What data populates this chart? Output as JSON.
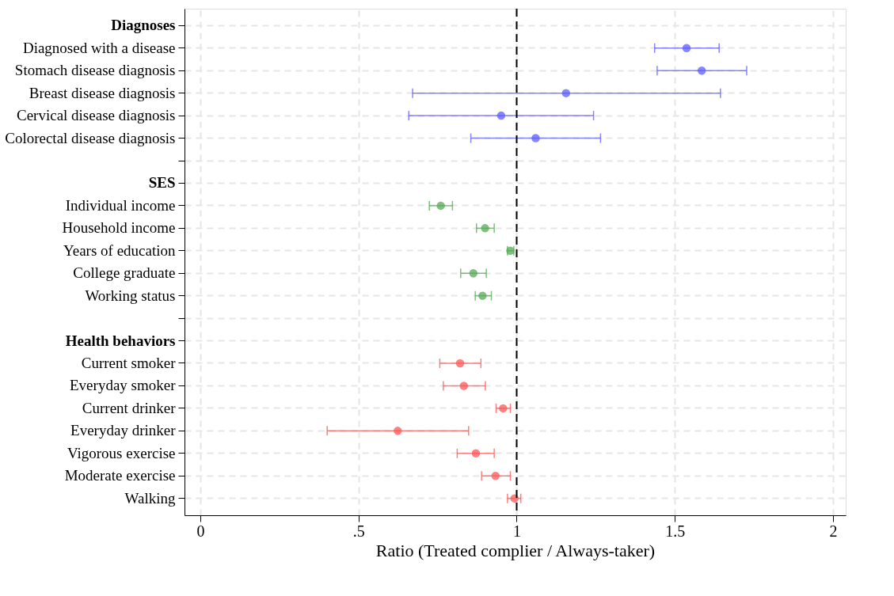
{
  "chart_data": {
    "type": "scatter",
    "orientation": "horizontal",
    "xlabel": "Ratio (Treated complier / Always-taker)",
    "categories": [
      "Diagnoses",
      "Diagnosed with a disease",
      "Stomach disease diagnosis",
      "Breast disease diagnosis",
      "Cervical disease diagnosis",
      "Colorectal disease diagnosis",
      null,
      "SES",
      "Individual income",
      "Household income",
      "Years of education",
      "College graduate",
      "Working status",
      null,
      "Health behaviors",
      "Current smoker",
      "Everyday smoker",
      "Current drinker",
      "Everyday drinker",
      "Vigorous exercise",
      "Moderate exercise",
      "Walking"
    ],
    "series": [
      {
        "color": "#5c5cff",
        "values": [
          null,
          1.537,
          1.585,
          1.156,
          0.951,
          1.06,
          null,
          null,
          null,
          null,
          null,
          null,
          null,
          null,
          null,
          null,
          null,
          null,
          null,
          null,
          null,
          null
        ],
        "errors": [
          null,
          [
            1.436,
            1.64
          ],
          [
            1.444,
            1.727
          ],
          [
            0.671,
            1.644
          ],
          [
            0.659,
            1.243
          ],
          [
            0.855,
            1.265
          ],
          null,
          null,
          null,
          null,
          null,
          null,
          null,
          null,
          null,
          null,
          null,
          null,
          null,
          null,
          null,
          null
        ]
      },
      {
        "color": "#55aa55",
        "values": [
          null,
          null,
          null,
          null,
          null,
          null,
          null,
          null,
          0.76,
          0.9,
          0.98,
          0.863,
          0.892,
          null,
          null,
          null,
          null,
          null,
          null,
          null,
          null,
          null
        ],
        "errors": [
          null,
          null,
          null,
          null,
          null,
          null,
          null,
          null,
          [
            0.724,
            0.797
          ],
          [
            0.873,
            0.929
          ],
          [
            0.971,
            0.991
          ],
          [
            0.823,
            0.904
          ],
          [
            0.869,
            0.92
          ],
          null,
          null,
          null,
          null,
          null,
          null,
          null,
          null,
          null
        ]
      },
      {
        "color": "#ff5555",
        "values": [
          null,
          null,
          null,
          null,
          null,
          null,
          null,
          null,
          null,
          null,
          null,
          null,
          null,
          null,
          null,
          0.821,
          0.833,
          0.957,
          0.624,
          0.871,
          0.933,
          0.993
        ],
        "errors": [
          null,
          null,
          null,
          null,
          null,
          null,
          null,
          null,
          null,
          null,
          null,
          null,
          null,
          null,
          null,
          [
            0.757,
            0.887
          ],
          [
            0.768,
            0.901
          ],
          [
            0.935,
            0.98
          ],
          [
            0.401,
            0.848
          ],
          [
            0.812,
            0.929
          ],
          [
            0.889,
            0.98
          ],
          [
            0.971,
            1.013
          ]
        ]
      }
    ],
    "xlim": [
      -0.05,
      2.04
    ],
    "xticks": [
      0,
      {
        "value": 0.5,
        "label": ".5"
      },
      1,
      1.5,
      2
    ],
    "ref_lines": [
      {
        "axis": "x",
        "value": 1,
        "color": "#000000",
        "line_style": "dashed"
      }
    ],
    "grid": true,
    "legend": false,
    "marker": "circle"
  }
}
